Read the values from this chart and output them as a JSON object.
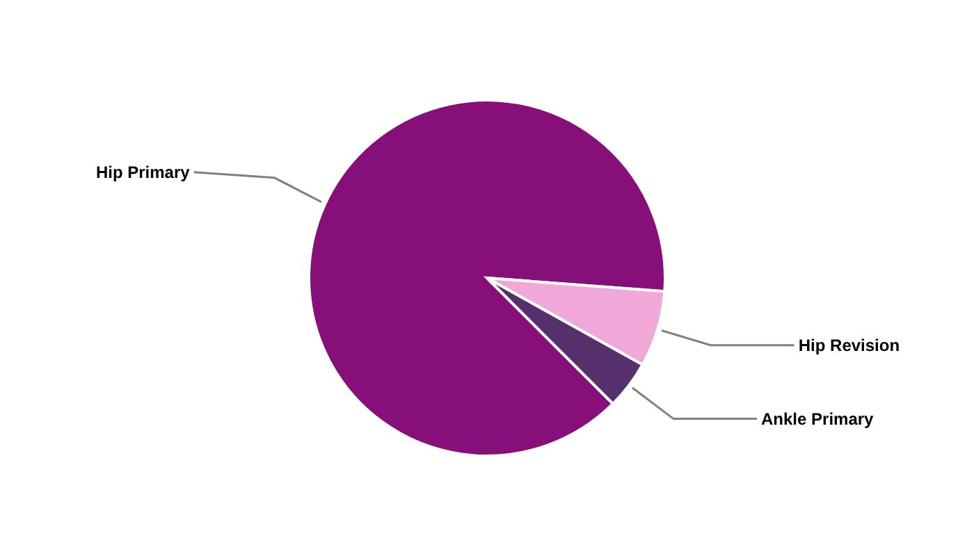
{
  "chart_data": {
    "type": "pie",
    "categories": [
      "Hip Primary",
      "Hip Revision",
      "Ankle Primary"
    ],
    "values": [
      88.7,
      6.9,
      4.4
    ],
    "colors": [
      "#870f7a",
      "#f0a8d8",
      "#55306d"
    ]
  }
}
